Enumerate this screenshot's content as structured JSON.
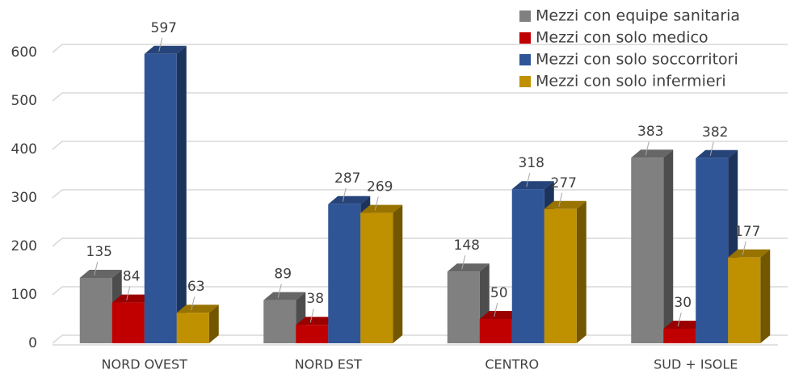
{
  "chart_data": {
    "type": "bar",
    "categories": [
      "NORD OVEST",
      "NORD EST",
      "CENTRO",
      "SUD + ISOLE"
    ],
    "series": [
      {
        "name": "Mezzi con equipe sanitaria",
        "color": "#808080",
        "values": [
          135,
          89,
          148,
          383
        ]
      },
      {
        "name": "Mezzi con solo medico",
        "color": "#c00000",
        "values": [
          84,
          38,
          50,
          30
        ]
      },
      {
        "name": "Mezzi con solo soccorritori",
        "color": "#2f5597",
        "values": [
          597,
          287,
          318,
          382
        ]
      },
      {
        "name": "Mezzi con solo infermieri",
        "color": "#bf9000",
        "values": [
          63,
          269,
          277,
          177
        ]
      }
    ],
    "ylim": [
      0,
      600
    ],
    "yticks": [
      0,
      100,
      200,
      300,
      400,
      500,
      600
    ],
    "grid": true,
    "legend": "top-right"
  }
}
